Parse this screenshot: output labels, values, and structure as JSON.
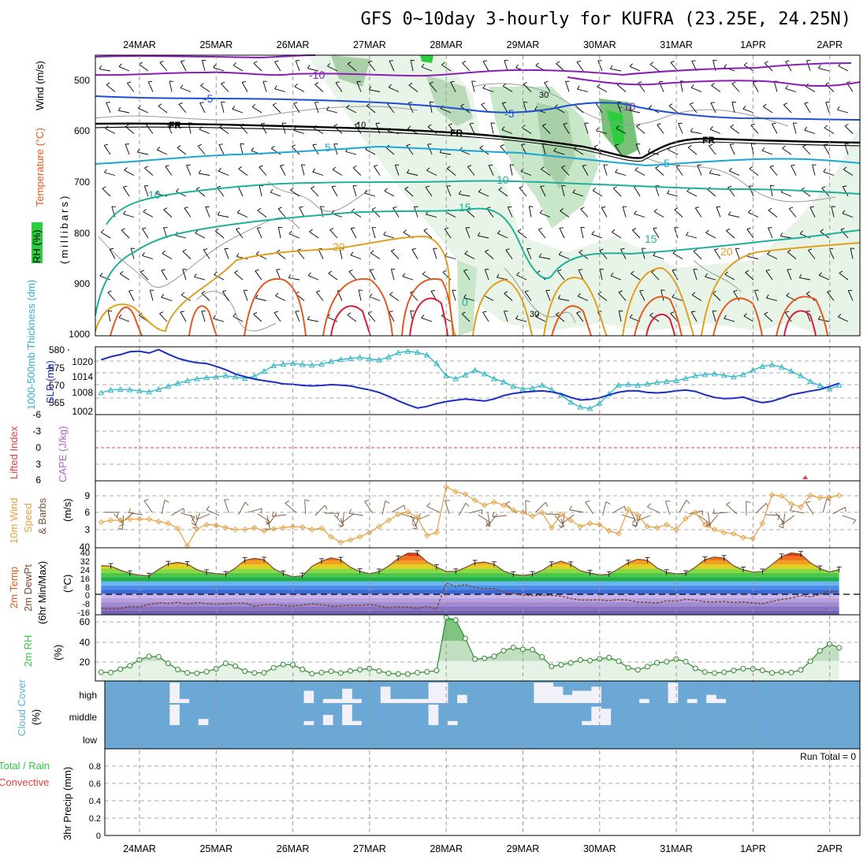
{
  "title": "GFS 0~10day 3-hourly for KUFRA (23.25E, 24.25N)",
  "dates": [
    "24MAR",
    "25MAR",
    "26MAR",
    "27MAR",
    "28MAR",
    "29MAR",
    "30MAR",
    "31MAR",
    "1APR",
    "2APR"
  ],
  "colors": {
    "temperature_cold": "#8a1fb8",
    "temperature_blue": "#1f4fd1",
    "temperature_cyan": "#1aa6d6",
    "temperature_teal": "#1fb09a",
    "temperature_warm": "#e0a020",
    "temperature_hot": "#e05a20",
    "temperature_red": "#d81f3a",
    "rh_green": "#2ecc40",
    "thickness": "#2ab7c7",
    "slp": "#1a2fc2",
    "wind_speed": "#e8a040",
    "barbs": "#7a5230",
    "cloud_bg": "#6ba8d6",
    "rh_line": "#2a8a2a"
  },
  "panels": {
    "upper_air": {
      "labels": {
        "rh": "RH (%)",
        "temperature": "Temperature (°C)",
        "wind": "Wind (m/s)",
        "pressure": "(millibars)"
      },
      "y_ticks": [
        "500",
        "600",
        "700",
        "800",
        "900",
        "1000"
      ],
      "contour_labels": {
        "m10": "-10",
        "m5": "-5",
        "fr": "FR",
        "p5": "5",
        "p10": "10",
        "p15": "15",
        "p20": "20",
        "rh10": "10",
        "rh30": "30",
        "zero": "0"
      }
    },
    "thickness_slp": {
      "label_thickness": "1000-500mb Thickness (dm)",
      "label_slp": "SLP (mb)",
      "left_ticks": [
        "580",
        "575",
        "570",
        "565"
      ],
      "right_ticks": [
        "1020",
        "1014",
        "1008",
        "1002"
      ]
    },
    "cape_li": {
      "label_li": "Lifted Index",
      "label_cape": "CAPE (J/kg)",
      "ticks": [
        "-6",
        "-3",
        "0",
        "3",
        "6"
      ]
    },
    "wind10": {
      "label1": "10m Wind",
      "label2": "Speed",
      "label3": "& Barbs",
      "units": "(m/s)",
      "ticks": [
        "9",
        "6",
        "3",
        "40"
      ]
    },
    "temp2m": {
      "label1": "2m Temp",
      "label2": "2m DewPt",
      "label3": "(6hr Min/Max)",
      "units": "(°C)",
      "ticks": [
        "40",
        "32",
        "24",
        "16",
        "8",
        "0",
        "-8",
        "-16"
      ]
    },
    "rh2m": {
      "label": "2m RH",
      "units": "(%)",
      "ticks": [
        "60",
        "40",
        "20"
      ]
    },
    "cloud": {
      "label": "Cloud Cover",
      "units": "(%)",
      "levels": [
        "high",
        "middle",
        "low"
      ]
    },
    "precip": {
      "label1": "Total / Rain",
      "label2": "Convective",
      "axis": "3hr Precip (mm)",
      "ticks": [
        "0.8",
        "0.6",
        "0.4",
        "0.2",
        "0"
      ],
      "run_total": "Run Total = 0"
    }
  },
  "chart_data": [
    {
      "type": "line",
      "title": "1000-500mb Thickness (dm)",
      "ylim": [
        562,
        580
      ],
      "x_unit": "3-hourly steps from 23 Mar 12Z",
      "values": [
        567.8,
        568.5,
        568.7,
        568.6,
        568.3,
        568.0,
        568.7,
        569.5,
        570.3,
        571.0,
        571.5,
        571.8,
        572.0,
        572.3,
        572.0,
        571.6,
        572.2,
        573.5,
        575.0,
        575.4,
        575.6,
        575.3,
        575.1,
        575.4,
        576.1,
        576.6,
        576.9,
        577.2,
        576.8,
        576.5,
        577.3,
        578.4,
        578.8,
        578.5,
        577.8,
        575.5,
        572.3,
        571.5,
        572.5,
        573.8,
        572.8,
        571.5,
        570.7,
        569.5,
        568.8,
        569.0,
        569.8,
        568.6,
        567.2,
        565.3,
        564.0,
        563.6,
        565.0,
        567.5,
        569.8,
        570.0,
        569.8,
        570.1,
        570.5,
        570.8,
        571.0,
        571.6,
        572.3,
        572.6,
        572.8,
        572.4,
        572.0,
        572.6,
        573.8,
        574.8,
        575.2,
        574.6,
        573.5,
        572.3,
        570.8,
        569.7,
        568.8,
        569.8
      ]
    },
    {
      "type": "line",
      "title": "SLP (mb)",
      "ylim": [
        1000,
        1026
      ],
      "x_unit": "3-hourly steps from 23 Mar 12Z",
      "values": [
        1021.0,
        1022.2,
        1023.0,
        1024.1,
        1024.3,
        1023.6,
        1024.9,
        1023.2,
        1021.6,
        1020.6,
        1019.9,
        1019.6,
        1018.5,
        1017.2,
        1015.6,
        1014.5,
        1013.6,
        1013.0,
        1012.5,
        1011.8,
        1011.6,
        1011.2,
        1011.0,
        1011.2,
        1011.5,
        1011.3,
        1011.0,
        1010.2,
        1009.5,
        1008.5,
        1007.0,
        1005.3,
        1003.8,
        1002.5,
        1003.1,
        1004.2,
        1005.0,
        1005.5,
        1006.0,
        1005.6,
        1005.2,
        1006.0,
        1007.3,
        1008.1,
        1008.6,
        1008.9,
        1009.1,
        1008.7,
        1007.9,
        1006.6,
        1005.6,
        1005.8,
        1006.4,
        1007.6,
        1008.6,
        1009.1,
        1009.1,
        1008.5,
        1008.3,
        1008.6,
        1009.1,
        1009.4,
        1008.9,
        1007.6,
        1006.6,
        1006.1,
        1006.3,
        1006.7,
        1005.4,
        1004.6,
        1005.1,
        1006.3,
        1007.6,
        1008.3,
        1009.0,
        1009.6,
        1010.8,
        1012.0
      ]
    },
    {
      "type": "line",
      "title": "10m Wind Speed (m/s)",
      "ylim": [
        0,
        11
      ],
      "x_unit": "3-hourly steps from 23 Mar 12Z",
      "values": [
        4.2,
        4.5,
        4.5,
        4.7,
        4.7,
        4.7,
        4.3,
        4.0,
        3.2,
        0.3,
        3.1,
        3.8,
        3.7,
        3.3,
        3.0,
        3.0,
        3.3,
        2.8,
        3.1,
        3.3,
        3.5,
        3.4,
        3.0,
        3.2,
        1.8,
        0.9,
        1.3,
        1.8,
        2.5,
        3.5,
        4.5,
        5.5,
        5.9,
        5.0,
        2.0,
        2.5,
        10.0,
        9.2,
        8.8,
        7.8,
        7.0,
        7.5,
        7.0,
        6.2,
        5.8,
        5.2,
        5.8,
        3.3,
        5.5,
        4.5,
        3.5,
        4.0,
        3.8,
        2.8,
        2.3,
        6.3,
        5.3,
        3.5,
        3.3,
        3.8,
        3.0,
        4.8,
        5.8,
        3.8,
        3.0,
        2.5,
        2.3,
        1.7,
        1.5,
        4.0,
        8.7,
        8.5,
        7.2,
        6.7,
        8.6,
        8.2,
        8.3,
        8.6
      ]
    },
    {
      "type": "line",
      "title": "2m Temp / 2m DewPt (°C)",
      "ylim": [
        -20,
        44
      ],
      "x_unit": "3-hourly steps from 23 Mar 12Z",
      "series": [
        {
          "values": [
            27.0,
            26.4,
            22.7,
            19.5,
            17.9,
            17.2,
            23.4,
            28.6,
            30.1,
            28.4,
            23.1,
            20.5,
            19.4,
            18.8,
            24.6,
            32.0,
            34.0,
            32.5,
            24.2,
            19.3,
            16.4,
            17.3,
            26.2,
            31.1,
            34.4,
            32.4,
            25.4,
            21.4,
            19.3,
            21.2,
            26.6,
            33.8,
            38.8,
            38.7,
            30.6,
            25.5,
            21.4,
            21.3,
            25.1,
            29.5,
            30.4,
            28.1,
            21.9,
            18.7,
            17.6,
            18.8,
            22.4,
            28.1,
            31.2,
            28.0,
            22.1,
            19.9,
            18.1,
            18.7,
            24.0,
            29.6,
            33.1,
            32.0,
            24.8,
            20.6,
            19.1,
            19.6,
            25.5,
            32.8,
            35.2,
            34.1,
            26.6,
            23.1,
            20.7,
            21.2,
            28.0,
            35.6,
            39.1,
            37.9,
            29.7,
            24.2,
            20.9,
            23.2
          ]
        },
        {
          "values": [
            -13.7,
            -14.6,
            -14.0,
            -12.0,
            -12.5,
            -10.1,
            -8.5,
            -9.2,
            -8.0,
            -9.8,
            -8.2,
            -9.2,
            -9.8,
            -9.3,
            -9.0,
            -8.7,
            -11.8,
            -10.3,
            -10.2,
            -11.1,
            -11.5,
            -10.8,
            -9.5,
            -10.4,
            -11.6,
            -11.4,
            -10.7,
            -11.2,
            -10.2,
            -11.6,
            -13.2,
            -12.3,
            -12.8,
            -14.0,
            -12.1,
            -14.3,
            10.2,
            7.1,
            8.7,
            6.2,
            4.6,
            5.2,
            1.4,
            0.0,
            -1.2,
            -1.6,
            -1.4,
            -1.5,
            -2.2,
            -4.4,
            -5.9,
            -6.0,
            -5.8,
            -6.7,
            -5.4,
            -6.1,
            -7.9,
            -8.2,
            -8.7,
            -6.7,
            -7.0,
            -5.2,
            -6.0,
            -7.6,
            -7.7,
            -7.3,
            -8.3,
            -7.7,
            -8.6,
            -9.4,
            -7.2,
            -5.3,
            -4.0,
            -1.6,
            -3.0,
            -0.6,
            2.7,
            1.7
          ]
        }
      ]
    },
    {
      "type": "area",
      "title": "2m RH (%)",
      "ylim": [
        0,
        66
      ],
      "x_unit": "3-hourly steps from 23 Mar 12Z",
      "values": [
        8.7,
        8.4,
        11.8,
        15.1,
        21.1,
        24.5,
        24.2,
        17.6,
        11.4,
        8.2,
        7.7,
        9.3,
        12.2,
        17.6,
        14.8,
        9.8,
        8.1,
        8.2,
        13.2,
        16.4,
        16.1,
        11.6,
        7.3,
        8.4,
        9.7,
        8.0,
        10.0,
        11.3,
        12.5,
        10.0,
        7.7,
        7.1,
        6.9,
        8.3,
        9.2,
        10.4,
        63.3,
        60.7,
        42.4,
        21.8,
        22.6,
        24.6,
        30.2,
        33.4,
        31.5,
        31.2,
        24.0,
        14.5,
        16.1,
        18.1,
        20.9,
        20.3,
        22.1,
        23.4,
        19.7,
        13.3,
        11.1,
        14.3,
        18.1,
        19.2,
        21.7,
        19.3,
        12.6,
        8.9,
        8.0,
        8.7,
        10.5,
        12.4,
        12.1,
        10.6,
        8.1,
        8.9,
        8.4,
        11.0,
        19.6,
        30.2,
        36.8,
        33.1
      ]
    },
    {
      "type": "line",
      "title": "3hr Precip (mm)",
      "ylim": [
        0,
        1
      ],
      "values": [
        0,
        0,
        0,
        0,
        0,
        0,
        0,
        0,
        0,
        0
      ]
    }
  ]
}
